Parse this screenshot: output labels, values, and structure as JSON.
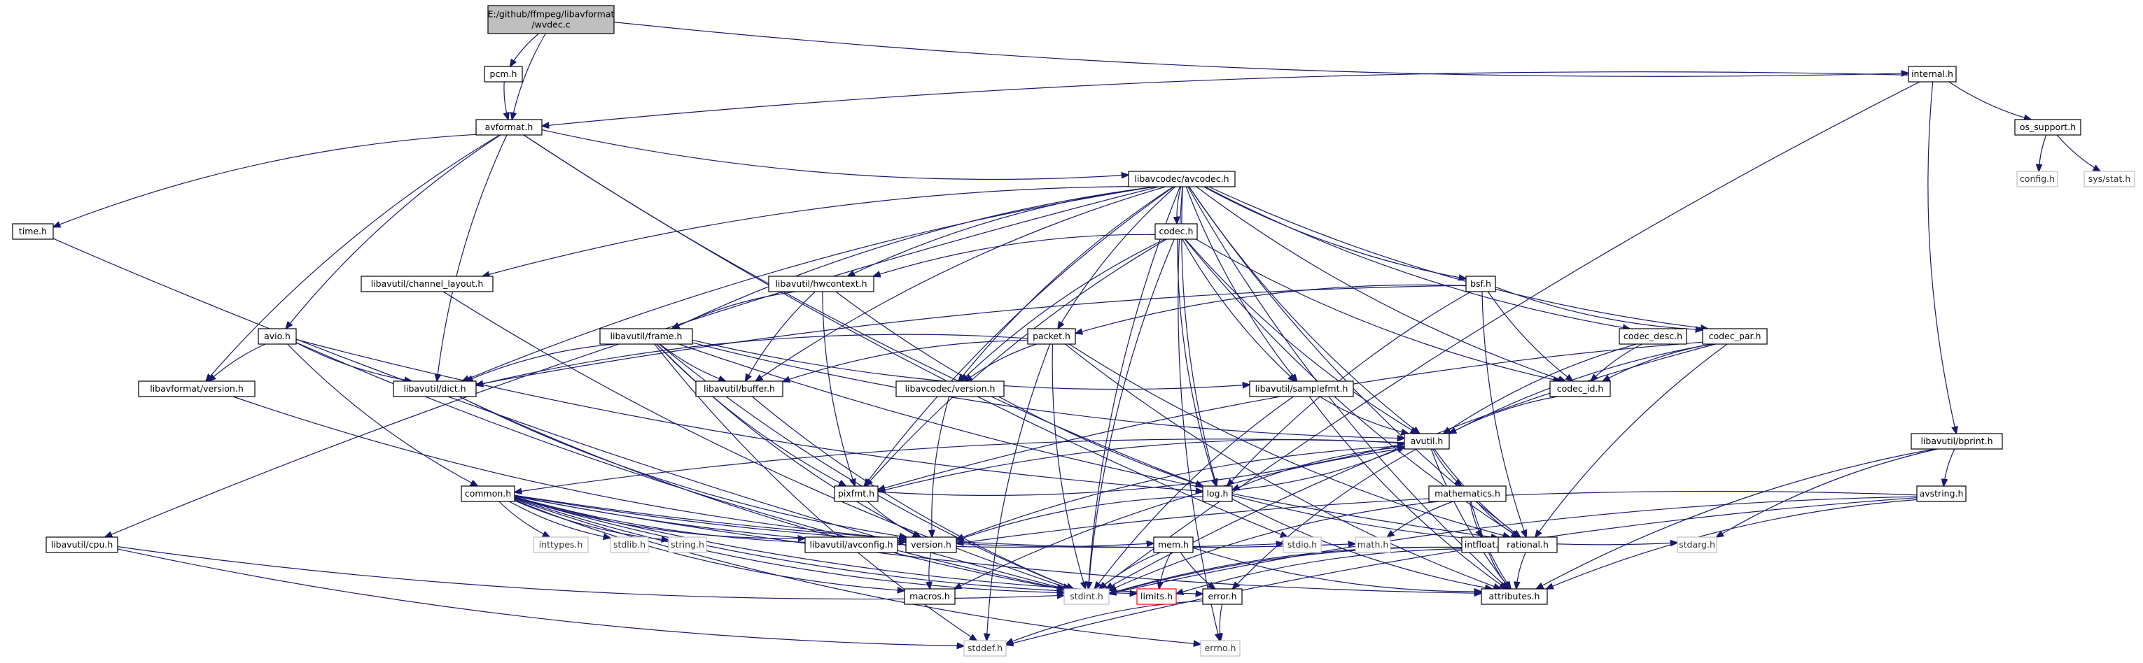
{
  "diagram": {
    "kind": "include-dependency-graph",
    "colors": {
      "edge": "#191970",
      "root_fill": "#bfbfbf",
      "external_border": "#bfbfbf",
      "missing_border": "#ff0000"
    },
    "nodes": [
      {
        "id": "root",
        "lines": [
          "E:/github/ffmpeg/libavformat",
          "/wvdec.c"
        ],
        "style": "root"
      },
      {
        "id": "pcm",
        "lines": [
          "pcm.h"
        ],
        "style": "normal"
      },
      {
        "id": "internal",
        "lines": [
          "internal.h"
        ],
        "style": "normal"
      },
      {
        "id": "avformat",
        "lines": [
          "avformat.h"
        ],
        "style": "normal"
      },
      {
        "id": "os_support",
        "lines": [
          "os_support.h"
        ],
        "style": "normal"
      },
      {
        "id": "config",
        "lines": [
          "config.h"
        ],
        "style": "external"
      },
      {
        "id": "sys_stat",
        "lines": [
          "sys/stat.h"
        ],
        "style": "external"
      },
      {
        "id": "time",
        "lines": [
          "time.h"
        ],
        "style": "normal"
      },
      {
        "id": "avcodec",
        "lines": [
          "libavcodec/avcodec.h"
        ],
        "style": "normal"
      },
      {
        "id": "codec",
        "lines": [
          "codec.h"
        ],
        "style": "normal"
      },
      {
        "id": "channel_layout",
        "lines": [
          "libavutil/channel_layout.h"
        ],
        "style": "normal"
      },
      {
        "id": "hwcontext",
        "lines": [
          "libavutil/hwcontext.h"
        ],
        "style": "normal"
      },
      {
        "id": "bsf",
        "lines": [
          "bsf.h"
        ],
        "style": "normal"
      },
      {
        "id": "avio",
        "lines": [
          "avio.h"
        ],
        "style": "normal"
      },
      {
        "id": "frame",
        "lines": [
          "libavutil/frame.h"
        ],
        "style": "normal"
      },
      {
        "id": "packet",
        "lines": [
          "packet.h"
        ],
        "style": "normal"
      },
      {
        "id": "codec_desc",
        "lines": [
          "codec_desc.h"
        ],
        "style": "normal"
      },
      {
        "id": "codec_par",
        "lines": [
          "codec_par.h"
        ],
        "style": "normal"
      },
      {
        "id": "lavf_version",
        "lines": [
          "libavformat/version.h"
        ],
        "style": "normal"
      },
      {
        "id": "dict",
        "lines": [
          "libavutil/dict.h"
        ],
        "style": "normal"
      },
      {
        "id": "buffer",
        "lines": [
          "libavutil/buffer.h"
        ],
        "style": "normal"
      },
      {
        "id": "lavc_version",
        "lines": [
          "libavcodec/version.h"
        ],
        "style": "normal"
      },
      {
        "id": "samplefmt",
        "lines": [
          "libavutil/samplefmt.h"
        ],
        "style": "normal"
      },
      {
        "id": "codec_id",
        "lines": [
          "codec_id.h"
        ],
        "style": "normal"
      },
      {
        "id": "bprint",
        "lines": [
          "libavutil/bprint.h"
        ],
        "style": "normal"
      },
      {
        "id": "avutil",
        "lines": [
          "avutil.h"
        ],
        "style": "normal"
      },
      {
        "id": "common",
        "lines": [
          "common.h"
        ],
        "style": "normal"
      },
      {
        "id": "pixfmt",
        "lines": [
          "pixfmt.h"
        ],
        "style": "normal"
      },
      {
        "id": "log",
        "lines": [
          "log.h"
        ],
        "style": "normal"
      },
      {
        "id": "mathematics",
        "lines": [
          "mathematics.h"
        ],
        "style": "normal"
      },
      {
        "id": "avstring",
        "lines": [
          "avstring.h"
        ],
        "style": "normal"
      },
      {
        "id": "inttypes",
        "lines": [
          "inttypes.h"
        ],
        "style": "external"
      },
      {
        "id": "stdlib",
        "lines": [
          "stdlib.h"
        ],
        "style": "external"
      },
      {
        "id": "string",
        "lines": [
          "string.h"
        ],
        "style": "external"
      },
      {
        "id": "avconfig",
        "lines": [
          "libavutil/avconfig.h"
        ],
        "style": "normal"
      },
      {
        "id": "version",
        "lines": [
          "version.h"
        ],
        "style": "normal"
      },
      {
        "id": "stdio",
        "lines": [
          "stdio.h"
        ],
        "style": "external"
      },
      {
        "id": "math",
        "lines": [
          "math.h"
        ],
        "style": "external"
      },
      {
        "id": "intfloat",
        "lines": [
          "intfloat.h"
        ],
        "style": "normal"
      },
      {
        "id": "rational",
        "lines": [
          "rational.h"
        ],
        "style": "normal"
      },
      {
        "id": "stdarg",
        "lines": [
          "stdarg.h"
        ],
        "style": "external"
      },
      {
        "id": "cpu",
        "lines": [
          "libavutil/cpu.h"
        ],
        "style": "normal"
      },
      {
        "id": "mem",
        "lines": [
          "mem.h"
        ],
        "style": "normal"
      },
      {
        "id": "macros",
        "lines": [
          "macros.h"
        ],
        "style": "normal"
      },
      {
        "id": "stdint",
        "lines": [
          "stdint.h"
        ],
        "style": "external"
      },
      {
        "id": "limits",
        "lines": [
          "limits.h"
        ],
        "style": "missing"
      },
      {
        "id": "error",
        "lines": [
          "error.h"
        ],
        "style": "normal"
      },
      {
        "id": "attributes",
        "lines": [
          "attributes.h"
        ],
        "style": "normal"
      },
      {
        "id": "stddef",
        "lines": [
          "stddef.h"
        ],
        "style": "external"
      },
      {
        "id": "errno",
        "lines": [
          "errno.h"
        ],
        "style": "external"
      }
    ],
    "edges": [
      [
        "root",
        "pcm"
      ],
      [
        "root",
        "avformat"
      ],
      [
        "root",
        "internal"
      ],
      [
        "pcm",
        "avformat"
      ],
      [
        "internal",
        "avformat"
      ],
      [
        "internal",
        "os_support"
      ],
      [
        "internal",
        "bprint"
      ],
      [
        "internal",
        "stdint"
      ],
      [
        "os_support",
        "config"
      ],
      [
        "os_support",
        "sys_stat"
      ],
      [
        "avformat",
        "time"
      ],
      [
        "avformat",
        "avcodec"
      ],
      [
        "avformat",
        "avio"
      ],
      [
        "avformat",
        "lavf_version"
      ],
      [
        "avformat",
        "dict"
      ],
      [
        "avformat",
        "log"
      ],
      [
        "avformat",
        "stdio"
      ],
      [
        "time",
        "stdint"
      ],
      [
        "avcodec",
        "codec"
      ],
      [
        "avcodec",
        "channel_layout"
      ],
      [
        "avcodec",
        "hwcontext"
      ],
      [
        "avcodec",
        "bsf"
      ],
      [
        "avcodec",
        "frame"
      ],
      [
        "avcodec",
        "packet"
      ],
      [
        "avcodec",
        "codec_desc"
      ],
      [
        "avcodec",
        "codec_par"
      ],
      [
        "avcodec",
        "dict"
      ],
      [
        "avcodec",
        "buffer"
      ],
      [
        "avcodec",
        "lavc_version"
      ],
      [
        "avcodec",
        "samplefmt"
      ],
      [
        "avcodec",
        "codec_id"
      ],
      [
        "avcodec",
        "avutil"
      ],
      [
        "avcodec",
        "log"
      ],
      [
        "avcodec",
        "pixfmt"
      ],
      [
        "avcodec",
        "rational"
      ],
      [
        "avcodec",
        "cpu"
      ],
      [
        "avcodec",
        "attributes"
      ],
      [
        "avcodec",
        "errno"
      ],
      [
        "avcodec",
        "stdint"
      ],
      [
        "codec",
        "hwcontext"
      ],
      [
        "codec",
        "lavc_version"
      ],
      [
        "codec",
        "samplefmt"
      ],
      [
        "codec",
        "codec_id"
      ],
      [
        "codec",
        "avutil"
      ],
      [
        "codec",
        "log"
      ],
      [
        "codec",
        "pixfmt"
      ],
      [
        "codec",
        "rational"
      ],
      [
        "codec",
        "stdint"
      ],
      [
        "channel_layout",
        "stdint"
      ],
      [
        "hwcontext",
        "frame"
      ],
      [
        "hwcontext",
        "buffer"
      ],
      [
        "hwcontext",
        "pixfmt"
      ],
      [
        "hwcontext",
        "log"
      ],
      [
        "bsf",
        "packet"
      ],
      [
        "bsf",
        "codec_id"
      ],
      [
        "bsf",
        "codec_par"
      ],
      [
        "bsf",
        "dict"
      ],
      [
        "bsf",
        "log"
      ],
      [
        "bsf",
        "rational"
      ],
      [
        "avio",
        "dict"
      ],
      [
        "avio",
        "lavf_version"
      ],
      [
        "avio",
        "common"
      ],
      [
        "avio",
        "log"
      ],
      [
        "avio",
        "stdint"
      ],
      [
        "frame",
        "dict"
      ],
      [
        "frame",
        "buffer"
      ],
      [
        "frame",
        "avutil"
      ],
      [
        "frame",
        "pixfmt"
      ],
      [
        "frame",
        "rational"
      ],
      [
        "frame",
        "samplefmt"
      ],
      [
        "frame",
        "version"
      ],
      [
        "frame",
        "stddef"
      ],
      [
        "frame",
        "stdint"
      ],
      [
        "packet",
        "buffer"
      ],
      [
        "packet",
        "dict"
      ],
      [
        "packet",
        "lavc_version"
      ],
      [
        "packet",
        "rational"
      ],
      [
        "packet",
        "attributes"
      ],
      [
        "packet",
        "stdint"
      ],
      [
        "packet",
        "stddef"
      ],
      [
        "codec_desc",
        "codec_id"
      ],
      [
        "codec_desc",
        "avutil"
      ],
      [
        "codec_par",
        "codec_id"
      ],
      [
        "codec_par",
        "avutil"
      ],
      [
        "codec_par",
        "pixfmt"
      ],
      [
        "codec_par",
        "rational"
      ],
      [
        "codec_par",
        "stdint"
      ],
      [
        "lavf_version",
        "version"
      ],
      [
        "dict",
        "stdint"
      ],
      [
        "dict",
        "version"
      ],
      [
        "buffer",
        "stdint"
      ],
      [
        "lavc_version",
        "version"
      ],
      [
        "samplefmt",
        "avutil"
      ],
      [
        "samplefmt",
        "attributes"
      ],
      [
        "samplefmt",
        "stdint"
      ],
      [
        "codec_id",
        "avutil"
      ],
      [
        "bprint",
        "avstring"
      ],
      [
        "bprint",
        "attributes"
      ],
      [
        "bprint",
        "stdarg"
      ],
      [
        "avutil",
        "common"
      ],
      [
        "avutil",
        "pixfmt"
      ],
      [
        "avutil",
        "log"
      ],
      [
        "avutil",
        "mathematics"
      ],
      [
        "avutil",
        "rational"
      ],
      [
        "avutil",
        "version"
      ],
      [
        "avutil",
        "macros"
      ],
      [
        "avutil",
        "error"
      ],
      [
        "avutil",
        "attributes"
      ],
      [
        "common",
        "inttypes"
      ],
      [
        "common",
        "stdlib"
      ],
      [
        "common",
        "string"
      ],
      [
        "common",
        "avconfig"
      ],
      [
        "common",
        "version"
      ],
      [
        "common",
        "stdio"
      ],
      [
        "common",
        "math"
      ],
      [
        "common",
        "mem"
      ],
      [
        "common",
        "error"
      ],
      [
        "common",
        "macros"
      ],
      [
        "common",
        "limits"
      ],
      [
        "common",
        "stdint"
      ],
      [
        "common",
        "attributes"
      ],
      [
        "common",
        "errno"
      ],
      [
        "pixfmt",
        "avutil"
      ],
      [
        "pixfmt",
        "version"
      ],
      [
        "log",
        "avutil"
      ],
      [
        "log",
        "stdarg"
      ],
      [
        "log",
        "version"
      ],
      [
        "log",
        "attributes"
      ],
      [
        "mathematics",
        "math"
      ],
      [
        "mathematics",
        "intfloat"
      ],
      [
        "mathematics",
        "rational"
      ],
      [
        "mathematics",
        "stdint"
      ],
      [
        "mathematics",
        "attributes"
      ],
      [
        "avstring",
        "version"
      ],
      [
        "avstring",
        "attributes"
      ],
      [
        "avstring",
        "stddef"
      ],
      [
        "avstring",
        "stdint"
      ],
      [
        "intfloat",
        "stdint"
      ],
      [
        "intfloat",
        "attributes"
      ],
      [
        "rational",
        "stdint"
      ],
      [
        "rational",
        "limits"
      ],
      [
        "rational",
        "attributes"
      ],
      [
        "cpu",
        "stdint"
      ],
      [
        "cpu",
        "stddef"
      ],
      [
        "mem",
        "attributes"
      ],
      [
        "mem",
        "error"
      ],
      [
        "mem",
        "limits"
      ],
      [
        "mem",
        "stdint"
      ],
      [
        "error",
        "errno"
      ],
      [
        "error",
        "stddef"
      ],
      [
        "version",
        "macros"
      ]
    ]
  }
}
